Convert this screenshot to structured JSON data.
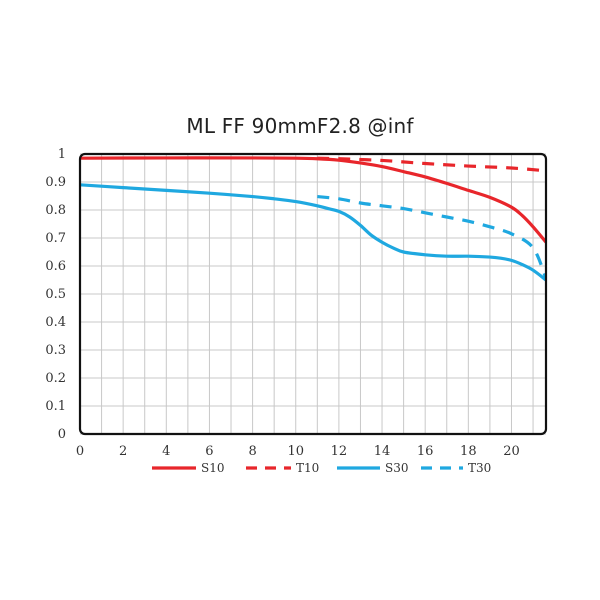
{
  "chart_data": {
    "type": "line",
    "title": "ML FF 90mmF2.8 @inf",
    "xlabel": "",
    "ylabel": "",
    "xlim": [
      0,
      21.6
    ],
    "ylim": [
      0,
      1
    ],
    "x_ticks": [
      "0",
      "2",
      "4",
      "6",
      "8",
      "10",
      "12",
      "14",
      "16",
      "18",
      "20"
    ],
    "y_ticks": [
      "0",
      "0.1",
      "0.2",
      "0.3",
      "0.4",
      "0.5",
      "0.6",
      "0.7",
      "0.8",
      "0.9",
      "1"
    ],
    "grid": true,
    "legend_position": "bottom",
    "series": [
      {
        "name": "S10",
        "color": "#e8262b",
        "style": "solid",
        "x": [
          0,
          4,
          8,
          10,
          11,
          12,
          13,
          14,
          15,
          16,
          17,
          18,
          19,
          20,
          20.5,
          21,
          21.6
        ],
        "y": [
          0.985,
          0.986,
          0.986,
          0.985,
          0.983,
          0.978,
          0.968,
          0.955,
          0.937,
          0.918,
          0.895,
          0.87,
          0.845,
          0.81,
          0.78,
          0.74,
          0.685
        ]
      },
      {
        "name": "T10",
        "color": "#e8262b",
        "style": "dashed",
        "x": [
          11,
          12,
          14,
          16,
          18,
          20,
          21.6
        ],
        "y": [
          0.985,
          0.983,
          0.977,
          0.966,
          0.957,
          0.95,
          0.94
        ]
      },
      {
        "name": "S30",
        "color": "#1fa8e0",
        "style": "solid",
        "x": [
          0,
          2,
          4,
          6,
          8,
          9,
          10,
          11,
          11.5,
          12,
          12.5,
          13,
          13.5,
          14,
          14.5,
          15,
          16,
          17,
          18,
          19,
          19.5,
          20,
          20.5,
          21,
          21.6
        ],
        "y": [
          0.89,
          0.88,
          0.87,
          0.86,
          0.848,
          0.84,
          0.83,
          0.815,
          0.805,
          0.795,
          0.775,
          0.745,
          0.71,
          0.685,
          0.665,
          0.65,
          0.64,
          0.635,
          0.635,
          0.632,
          0.628,
          0.62,
          0.605,
          0.585,
          0.55
        ]
      },
      {
        "name": "T30",
        "color": "#1fa8e0",
        "style": "dashed",
        "x": [
          11,
          12,
          13,
          14,
          15,
          16,
          17,
          18,
          19,
          20,
          21,
          21.6
        ],
        "y": [
          0.848,
          0.84,
          0.825,
          0.815,
          0.805,
          0.79,
          0.775,
          0.76,
          0.74,
          0.715,
          0.665,
          0.555
        ]
      }
    ]
  }
}
